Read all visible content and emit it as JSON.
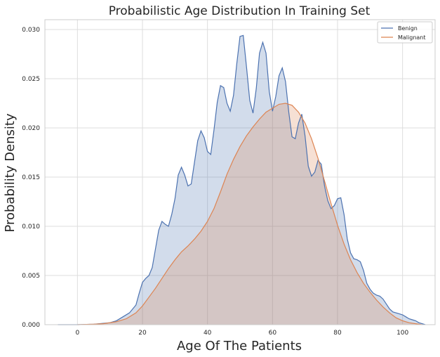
{
  "chart_data": {
    "type": "area",
    "title": "Probabilistic Age Distribution In Training Set",
    "xlabel": "Age Of The Patients",
    "ylabel": "Probability Density",
    "xlim": [
      -10,
      110
    ],
    "ylim": [
      0,
      0.031
    ],
    "x_ticks": [
      0,
      20,
      40,
      60,
      80,
      100
    ],
    "y_ticks": [
      0.0,
      0.005,
      0.01,
      0.015,
      0.02,
      0.025,
      0.03
    ],
    "x_tick_labels": [
      "0",
      "20",
      "40",
      "60",
      "80",
      "100"
    ],
    "y_tick_labels": [
      "0.000",
      "0.005",
      "0.010",
      "0.015",
      "0.020",
      "0.025",
      "0.030"
    ],
    "grid": true,
    "legend_position": "top-right",
    "series": [
      {
        "name": "Benign",
        "color": "#4c72b0",
        "fill": "rgba(76,114,176,0.25)",
        "points": [
          [
            -6,
            0.0
          ],
          [
            0,
            0.0
          ],
          [
            5,
            5e-05
          ],
          [
            10,
            0.0002
          ],
          [
            12,
            0.0004
          ],
          [
            14,
            0.0008
          ],
          [
            16,
            0.0012
          ],
          [
            18,
            0.002
          ],
          [
            19,
            0.0032
          ],
          [
            20,
            0.0043
          ],
          [
            21,
            0.0047
          ],
          [
            22,
            0.005
          ],
          [
            23,
            0.0058
          ],
          [
            24,
            0.0077
          ],
          [
            25,
            0.0096
          ],
          [
            26,
            0.0105
          ],
          [
            27,
            0.0102
          ],
          [
            28,
            0.01
          ],
          [
            29,
            0.0112
          ],
          [
            30,
            0.0128
          ],
          [
            31,
            0.0152
          ],
          [
            32,
            0.016
          ],
          [
            33,
            0.0152
          ],
          [
            34,
            0.0141
          ],
          [
            35,
            0.0143
          ],
          [
            36,
            0.0165
          ],
          [
            37,
            0.0187
          ],
          [
            38,
            0.0197
          ],
          [
            39,
            0.019
          ],
          [
            40,
            0.0176
          ],
          [
            41,
            0.0173
          ],
          [
            42,
            0.0198
          ],
          [
            43,
            0.0226
          ],
          [
            44,
            0.0243
          ],
          [
            45,
            0.0241
          ],
          [
            46,
            0.0225
          ],
          [
            47,
            0.0217
          ],
          [
            48,
            0.0233
          ],
          [
            49,
            0.0265
          ],
          [
            50,
            0.0293
          ],
          [
            51,
            0.0294
          ],
          [
            52,
            0.0262
          ],
          [
            53,
            0.0228
          ],
          [
            54,
            0.0215
          ],
          [
            55,
            0.024
          ],
          [
            56,
            0.0276
          ],
          [
            57,
            0.0287
          ],
          [
            58,
            0.0276
          ],
          [
            59,
            0.0237
          ],
          [
            60,
            0.0217
          ],
          [
            61,
            0.0232
          ],
          [
            62,
            0.0253
          ],
          [
            63,
            0.0261
          ],
          [
            64,
            0.0247
          ],
          [
            65,
            0.0216
          ],
          [
            66,
            0.0191
          ],
          [
            67,
            0.0189
          ],
          [
            68,
            0.0205
          ],
          [
            69,
            0.0214
          ],
          [
            70,
            0.0192
          ],
          [
            71,
            0.0161
          ],
          [
            72,
            0.0151
          ],
          [
            73,
            0.0155
          ],
          [
            74,
            0.0167
          ],
          [
            75,
            0.0163
          ],
          [
            76,
            0.0141
          ],
          [
            77,
            0.0126
          ],
          [
            78,
            0.0118
          ],
          [
            79,
            0.0121
          ],
          [
            80,
            0.0128
          ],
          [
            81,
            0.0129
          ],
          [
            82,
            0.0112
          ],
          [
            83,
            0.0087
          ],
          [
            84,
            0.0073
          ],
          [
            85,
            0.0067
          ],
          [
            86,
            0.0066
          ],
          [
            87,
            0.0064
          ],
          [
            88,
            0.0055
          ],
          [
            89,
            0.0042
          ],
          [
            90,
            0.0036
          ],
          [
            91,
            0.0032
          ],
          [
            92,
            0.003
          ],
          [
            93,
            0.0029
          ],
          [
            94,
            0.0026
          ],
          [
            95,
            0.0021
          ],
          [
            96,
            0.0016
          ],
          [
            97,
            0.0013
          ],
          [
            98,
            0.0012
          ],
          [
            99,
            0.0011
          ],
          [
            100,
            0.001
          ],
          [
            101,
            0.0008
          ],
          [
            102,
            0.0006
          ],
          [
            103,
            0.0005
          ],
          [
            104,
            0.0004
          ],
          [
            105,
            0.0002
          ],
          [
            106,
            0.0001
          ],
          [
            107,
            0.0
          ]
        ]
      },
      {
        "name": "Malignant",
        "color": "#dd8452",
        "fill": "rgba(221,132,82,0.25)",
        "points": [
          [
            0,
            0.0
          ],
          [
            5,
            5e-05
          ],
          [
            8,
            0.0001
          ],
          [
            12,
            0.0003
          ],
          [
            15,
            0.0006
          ],
          [
            18,
            0.0012
          ],
          [
            20,
            0.0019
          ],
          [
            22,
            0.0028
          ],
          [
            24,
            0.0037
          ],
          [
            26,
            0.0047
          ],
          [
            28,
            0.0057
          ],
          [
            30,
            0.0066
          ],
          [
            32,
            0.0074
          ],
          [
            34,
            0.008
          ],
          [
            36,
            0.0087
          ],
          [
            38,
            0.0095
          ],
          [
            40,
            0.0105
          ],
          [
            42,
            0.0118
          ],
          [
            44,
            0.0135
          ],
          [
            46,
            0.0153
          ],
          [
            48,
            0.0168
          ],
          [
            50,
            0.0181
          ],
          [
            52,
            0.0192
          ],
          [
            54,
            0.0201
          ],
          [
            56,
            0.0209
          ],
          [
            58,
            0.0216
          ],
          [
            60,
            0.022
          ],
          [
            62,
            0.0224
          ],
          [
            64,
            0.0225
          ],
          [
            66,
            0.0223
          ],
          [
            68,
            0.0216
          ],
          [
            70,
            0.0205
          ],
          [
            72,
            0.0189
          ],
          [
            74,
            0.0169
          ],
          [
            76,
            0.0146
          ],
          [
            78,
            0.0123
          ],
          [
            80,
            0.0101
          ],
          [
            82,
            0.0082
          ],
          [
            84,
            0.0066
          ],
          [
            86,
            0.0053
          ],
          [
            88,
            0.0042
          ],
          [
            90,
            0.0033
          ],
          [
            92,
            0.0025
          ],
          [
            94,
            0.0018
          ],
          [
            96,
            0.0012
          ],
          [
            98,
            0.0007
          ],
          [
            100,
            0.0004
          ],
          [
            102,
            0.0002
          ],
          [
            104,
            0.0001
          ],
          [
            106,
            0.0
          ]
        ]
      }
    ]
  }
}
